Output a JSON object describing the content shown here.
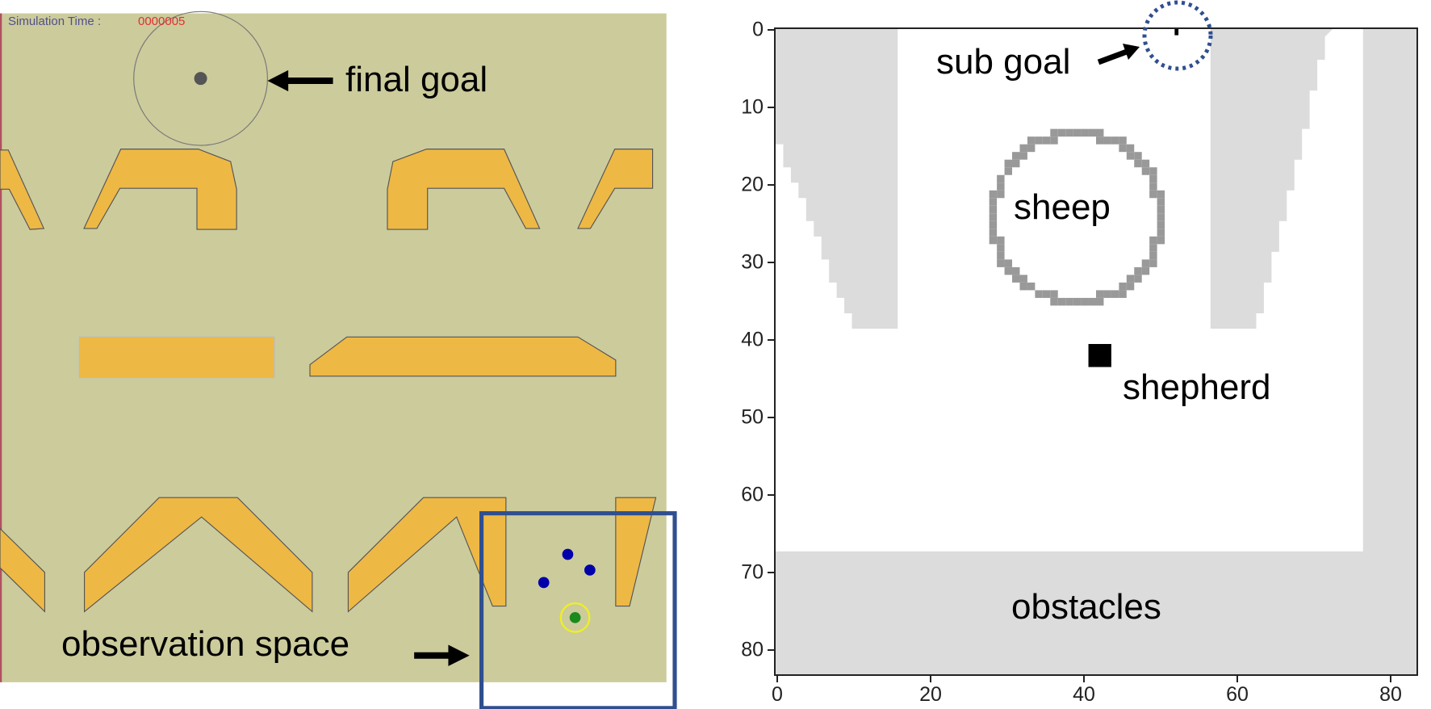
{
  "simulation": {
    "time_label": "Simulation Time :",
    "time_value": "0000005",
    "background_color": "#cccb9c",
    "obstacle_color": "#eeb845",
    "sheep_color": "#0000aa",
    "shepherd_color": "#1a8a1a",
    "shepherd_ring_color": "#f0f020",
    "observation_box_color": "#2f4f8f"
  },
  "annotations": {
    "final_goal": "final goal",
    "observation_space": "observation space",
    "sub_goal": "sub goal",
    "sheep": "sheep",
    "shepherd": "shepherd",
    "obstacles": "obstacles"
  },
  "grid_plot": {
    "x_ticks": [
      "0",
      "20",
      "40",
      "60",
      "80"
    ],
    "y_ticks": [
      "0",
      "10",
      "20",
      "30",
      "40",
      "50",
      "60",
      "70",
      "80"
    ],
    "xlim": [
      -0.5,
      83.5
    ],
    "ylim": [
      83.5,
      -0.5
    ],
    "obstacle_color": "#dcdcdc",
    "sheep_ring_color": "#999999",
    "sheep_center": [
      39,
      24
    ],
    "shepherd_cell": [
      42,
      42
    ],
    "sub_goal_cell": [
      52,
      0
    ]
  }
}
